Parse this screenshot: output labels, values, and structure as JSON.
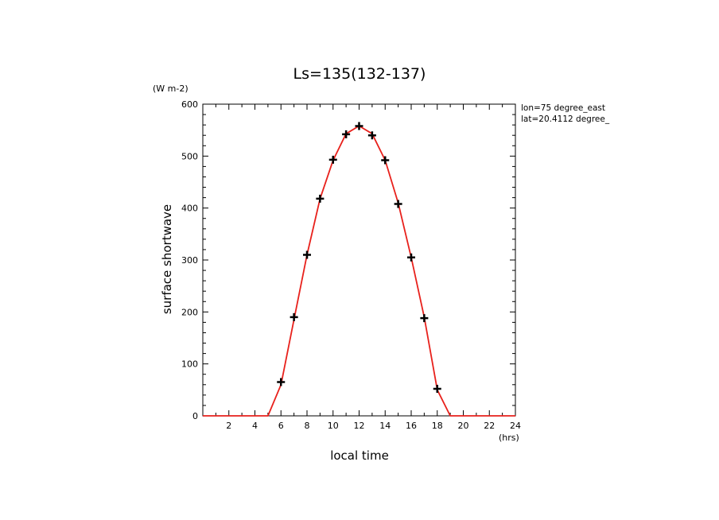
{
  "chart_data": {
    "type": "line",
    "title": "Ls=135(132-137)",
    "xlabel": "local time",
    "ylabel": "surface shortwave",
    "x_unit": "(hrs)",
    "y_unit": "(W m-2)",
    "annotations": [
      "lon=75 degree_east",
      "lat=20.4112 degree_"
    ],
    "xlim": [
      0,
      24
    ],
    "ylim": [
      0,
      600
    ],
    "x_ticks": [
      2,
      4,
      6,
      8,
      10,
      12,
      14,
      16,
      18,
      20,
      22,
      24
    ],
    "y_ticks": [
      0,
      100,
      200,
      300,
      400,
      500,
      600
    ],
    "series": [
      {
        "style": "line",
        "color": "#e8211c",
        "x": [
          0,
          1,
          2,
          3,
          4,
          5,
          6,
          7,
          8,
          9,
          10,
          11,
          12,
          13,
          14,
          15,
          16,
          17,
          18,
          19,
          20,
          21,
          22,
          23,
          24
        ],
        "y": [
          0,
          0,
          0,
          0,
          0,
          0,
          60,
          185,
          310,
          418,
          492,
          543,
          558,
          543,
          492,
          410,
          305,
          190,
          50,
          0,
          0,
          0,
          0,
          0,
          0
        ]
      },
      {
        "style": "markers",
        "marker": "plus",
        "color": "#000000",
        "x": [
          6,
          7,
          8,
          9,
          10,
          11,
          12,
          13,
          14,
          15,
          16,
          17,
          18
        ],
        "y": [
          65,
          190,
          310,
          418,
          493,
          542,
          558,
          540,
          492,
          408,
          305,
          188,
          52
        ]
      }
    ]
  }
}
